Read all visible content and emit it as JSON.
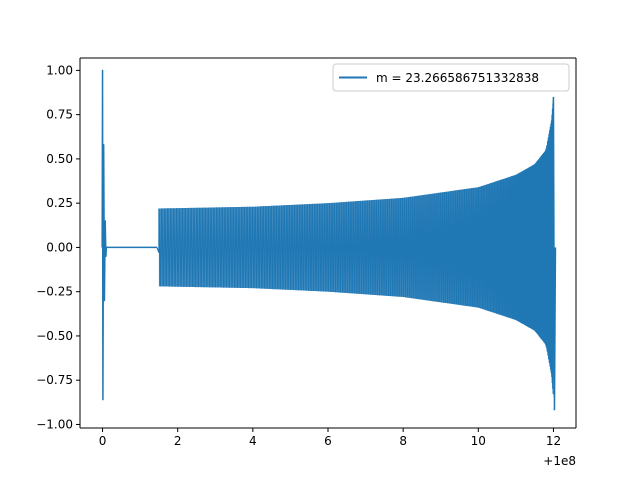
{
  "chart_data": {
    "type": "line",
    "title": "",
    "xlabel": "",
    "ylabel": "",
    "x_offset_label": "+1e8",
    "xlim": [
      -0.6,
      12.6
    ],
    "ylim": [
      -1.02,
      1.07
    ],
    "xticks": [
      0,
      2,
      4,
      6,
      8,
      10,
      12
    ],
    "xtick_labels": [
      "0",
      "2",
      "4",
      "6",
      "8",
      "10",
      "12"
    ],
    "yticks": [
      -1.0,
      -0.75,
      -0.5,
      -0.25,
      0.0,
      0.25,
      0.5,
      0.75,
      1.0
    ],
    "ytick_labels": [
      "−1.00",
      "−0.75",
      "−0.50",
      "−0.25",
      "0.00",
      "0.25",
      "0.50",
      "0.75",
      "1.00"
    ],
    "grid": false,
    "legend_position": "top-right",
    "series": [
      {
        "name": "m = 23.266586751332838",
        "color": "#1f77b4",
        "initial_spike": {
          "x": 0.0,
          "y_max": 1.0,
          "y_min": -0.86
        },
        "flat_segment": {
          "x_start": 0.1,
          "x_end": 1.45,
          "y": 0.0
        },
        "envelope": [
          {
            "x": 1.5,
            "y": 0.22
          },
          {
            "x": 4.0,
            "y": 0.23
          },
          {
            "x": 6.0,
            "y": 0.25
          },
          {
            "x": 8.0,
            "y": 0.28
          },
          {
            "x": 10.0,
            "y": 0.34
          },
          {
            "x": 11.0,
            "y": 0.41
          },
          {
            "x": 11.5,
            "y": 0.47
          },
          {
            "x": 11.8,
            "y": 0.55
          },
          {
            "x": 11.95,
            "y": 0.72
          },
          {
            "x": 12.0,
            "y": 0.85
          }
        ],
        "end_min": -0.92,
        "end_x": 12.0
      }
    ]
  }
}
